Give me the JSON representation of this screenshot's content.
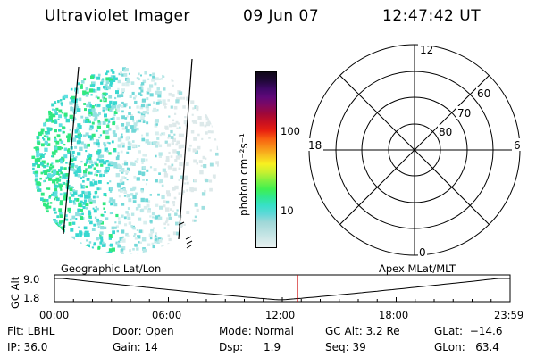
{
  "header": {
    "title": "Ultraviolet Imager",
    "date": "09 Jun 07",
    "time": "12:47:42 UT"
  },
  "colorbar": {
    "label": "photon cm⁻²s⁻¹",
    "ticks": [
      {
        "value": 100,
        "label": "100"
      },
      {
        "value": 10,
        "label": "10"
      }
    ],
    "colors": [
      "#e8f0f0",
      "#d0e8e8",
      "#b8e0e0",
      "#a0d8d8",
      "#60d8d8",
      "#38e0c8",
      "#30e890",
      "#40f050",
      "#80f040",
      "#c8f030",
      "#f8f020",
      "#f8c020",
      "#f89018",
      "#f86010",
      "#e82010",
      "#c81020",
      "#a00838",
      "#800860",
      "#600878",
      "#400868",
      "#200838",
      "#100818"
    ],
    "log_range": [
      0.35,
      2.6
    ]
  },
  "polar_plot": {
    "labels": {
      "top": "12",
      "bottom": "0",
      "left": "18",
      "right": "6",
      "ring_60": "60",
      "ring_70": "70",
      "ring_80": "80"
    }
  },
  "timeline": {
    "left_title": "Geographic Lat/Lon",
    "right_title": "Apex MLat/MLT",
    "axis_label": "GC Alt",
    "y_ticks": [
      "9.0",
      "1.8"
    ],
    "x_ticks": [
      "00:00",
      "06:00",
      "12:00",
      "18:00",
      "23:59"
    ],
    "current_time_hours": 12.8
  },
  "footer": {
    "flt": "Flt: LBHL",
    "ip": "IP: 36.0",
    "door": "Door: Open",
    "gain": "Gain: 14",
    "mode": "Mode: Normal",
    "dsp": "Dsp:      1.9",
    "gc_alt": "GC Alt: 3.2 Re",
    "seq": "Seq: 39",
    "glat": "GLat:  −14.6",
    "glon": "GLon:   63.4"
  }
}
